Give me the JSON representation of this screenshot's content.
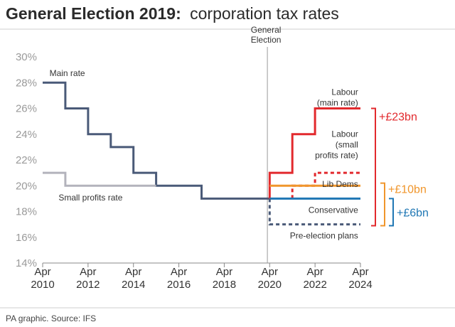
{
  "header": {
    "title_bold": "General Election 2019:",
    "title_light": "corporation tax rates"
  },
  "footer": {
    "source": "PA graphic. Source: IFS"
  },
  "chart_data": {
    "type": "line",
    "title": "General Election 2019: corporation tax rates",
    "xlabel": "",
    "ylabel": "",
    "xlim": [
      2010,
      2024
    ],
    "ylim": [
      14,
      30
    ],
    "x_ticks": [
      {
        "value": 2010,
        "line1": "Apr",
        "line2": "2010"
      },
      {
        "value": 2012,
        "line1": "Apr",
        "line2": "2012"
      },
      {
        "value": 2014,
        "line1": "Apr",
        "line2": "2014"
      },
      {
        "value": 2016,
        "line1": "Apr",
        "line2": "2016"
      },
      {
        "value": 2018,
        "line1": "Apr",
        "line2": "2018"
      },
      {
        "value": 2020,
        "line1": "Apr",
        "line2": "2020"
      },
      {
        "value": 2022,
        "line1": "Apr",
        "line2": "2022"
      },
      {
        "value": 2024,
        "line1": "Apr",
        "line2": "2024"
      }
    ],
    "y_ticks": [
      {
        "value": 14,
        "label": "14%"
      },
      {
        "value": 16,
        "label": "16%"
      },
      {
        "value": 18,
        "label": "18%"
      },
      {
        "value": 20,
        "label": "20%"
      },
      {
        "value": 22,
        "label": "22%"
      },
      {
        "value": 24,
        "label": "24%"
      },
      {
        "value": 26,
        "label": "26%"
      },
      {
        "value": 28,
        "label": "28%"
      },
      {
        "value": 30,
        "label": "30%"
      }
    ],
    "election_marker": {
      "x": 2019.9,
      "lines": [
        "General",
        "Election"
      ]
    },
    "series": [
      {
        "name": "Main rate",
        "key": "main",
        "color": "#4a5a78",
        "dashed": false,
        "points": [
          [
            2010,
            28
          ],
          [
            2011,
            28
          ],
          [
            2011,
            26
          ],
          [
            2012,
            26
          ],
          [
            2012,
            24
          ],
          [
            2013,
            24
          ],
          [
            2013,
            23
          ],
          [
            2014,
            23
          ],
          [
            2014,
            21
          ],
          [
            2015,
            21
          ],
          [
            2015,
            20
          ],
          [
            2017,
            20
          ],
          [
            2017,
            19
          ],
          [
            2020,
            19
          ]
        ]
      },
      {
        "name": "Small profits rate",
        "key": "small",
        "color": "#b3b3bc",
        "dashed": false,
        "points": [
          [
            2010,
            21
          ],
          [
            2011,
            21
          ],
          [
            2011,
            20
          ],
          [
            2015,
            20
          ]
        ]
      },
      {
        "name": "Labour (main rate)",
        "key": "labour-main",
        "color": "#e2292d",
        "dashed": false,
        "points": [
          [
            2020,
            19
          ],
          [
            2020,
            21
          ],
          [
            2021,
            21
          ],
          [
            2021,
            24
          ],
          [
            2022,
            24
          ],
          [
            2022,
            26
          ],
          [
            2024,
            26
          ]
        ]
      },
      {
        "name": "Labour (small profits rate)",
        "key": "labour-small",
        "color": "#e2292d",
        "dashed": true,
        "points": [
          [
            2021,
            19
          ],
          [
            2021,
            20
          ],
          [
            2022,
            20
          ],
          [
            2022,
            21
          ],
          [
            2024,
            21
          ]
        ]
      },
      {
        "name": "Lib Dems",
        "key": "libdem",
        "color": "#f0962c",
        "dashed": false,
        "points": [
          [
            2020,
            20
          ],
          [
            2024,
            20
          ]
        ]
      },
      {
        "name": "Conservative",
        "key": "conservative",
        "color": "#1f77b4",
        "dashed": false,
        "points": [
          [
            2020,
            19
          ],
          [
            2024,
            19
          ]
        ]
      },
      {
        "name": "Pre-election plans",
        "key": "pre-election",
        "color": "#4a5a78",
        "dashed": true,
        "points": [
          [
            2020,
            19
          ],
          [
            2020,
            17
          ],
          [
            2024,
            17
          ]
        ]
      }
    ],
    "labels": [
      {
        "key": "main-rate-label",
        "lines": [
          "Main rate"
        ],
        "x": 2010.3,
        "y": 28.5,
        "anchor": "start"
      },
      {
        "key": "small-profits-label",
        "lines": [
          "Small profits rate"
        ],
        "x": 2010.7,
        "y": 18.85,
        "anchor": "start"
      },
      {
        "key": "labour-main-label",
        "lines": [
          "Labour",
          "(main rate)"
        ],
        "x": 2023.9,
        "y": 27.05,
        "anchor": "end"
      },
      {
        "key": "labour-small-label",
        "lines": [
          "Labour",
          "(small",
          "profits rate)"
        ],
        "x": 2023.9,
        "y": 23.8,
        "anchor": "end"
      },
      {
        "key": "libdem-label",
        "lines": [
          "Lib Dems"
        ],
        "x": 2023.9,
        "y": 19.9,
        "anchor": "end"
      },
      {
        "key": "conservative-label",
        "lines": [
          "Conservative"
        ],
        "x": 2023.9,
        "y": 17.9,
        "anchor": "end"
      },
      {
        "key": "pre-election-label",
        "lines": [
          "Pre-election plans"
        ],
        "x": 2023.9,
        "y": 15.9,
        "anchor": "end"
      }
    ],
    "brackets": [
      {
        "label": "+£23bn",
        "color": "#e2292d",
        "y_from": 26,
        "y_to": 16.9
      },
      {
        "label": "+£10bn",
        "color": "#f0962c",
        "y_from": 20.2,
        "y_to": 16.9
      },
      {
        "label": "+£6bn",
        "color": "#1f77b4",
        "y_from": 19,
        "y_to": 16.9
      }
    ]
  }
}
